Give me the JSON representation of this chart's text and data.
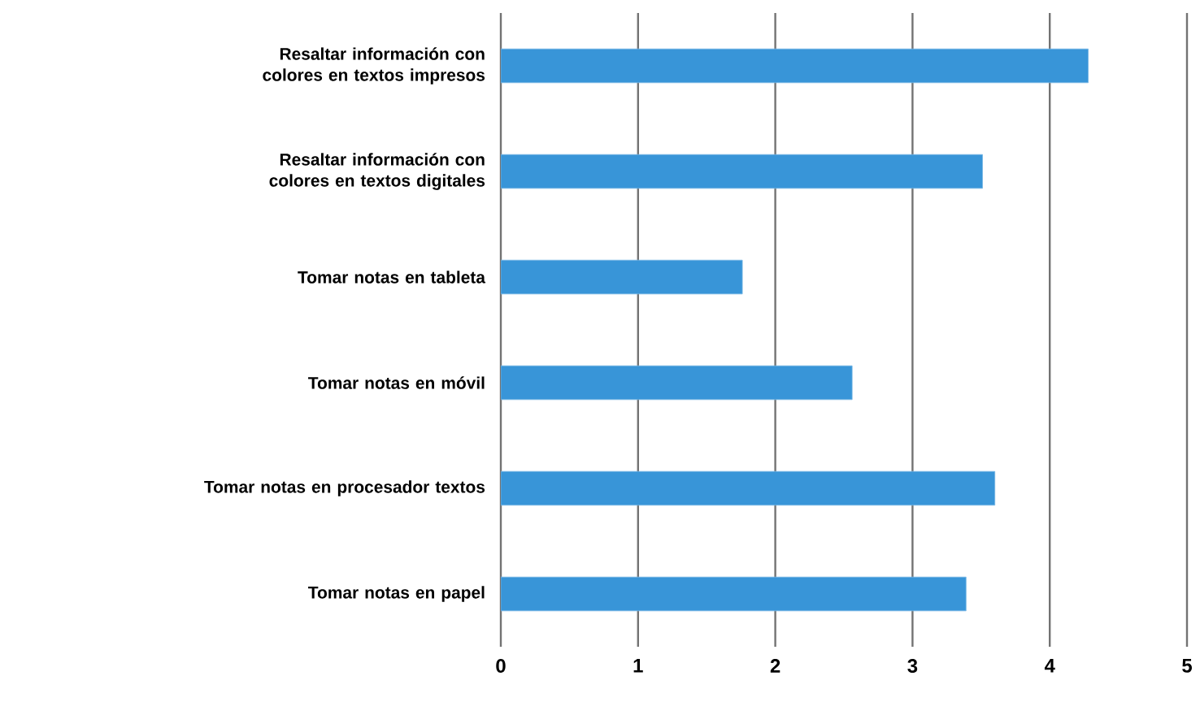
{
  "chart_data": {
    "type": "bar",
    "orientation": "horizontal",
    "categories": [
      "Resaltar información con colores en textos impresos",
      "Resaltar información con colores en textos digitales",
      "Tomar notas en tableta",
      "Tomar notas en móvil",
      "Tomar notas en procesador textos",
      "Tomar notas en papel"
    ],
    "values": [
      4.28,
      3.51,
      1.76,
      2.56,
      3.6,
      3.39
    ],
    "color": "#3895d8",
    "xlim": [
      0,
      5
    ],
    "xticks": [
      0,
      1,
      2,
      3,
      4,
      5
    ],
    "grid": "x"
  }
}
